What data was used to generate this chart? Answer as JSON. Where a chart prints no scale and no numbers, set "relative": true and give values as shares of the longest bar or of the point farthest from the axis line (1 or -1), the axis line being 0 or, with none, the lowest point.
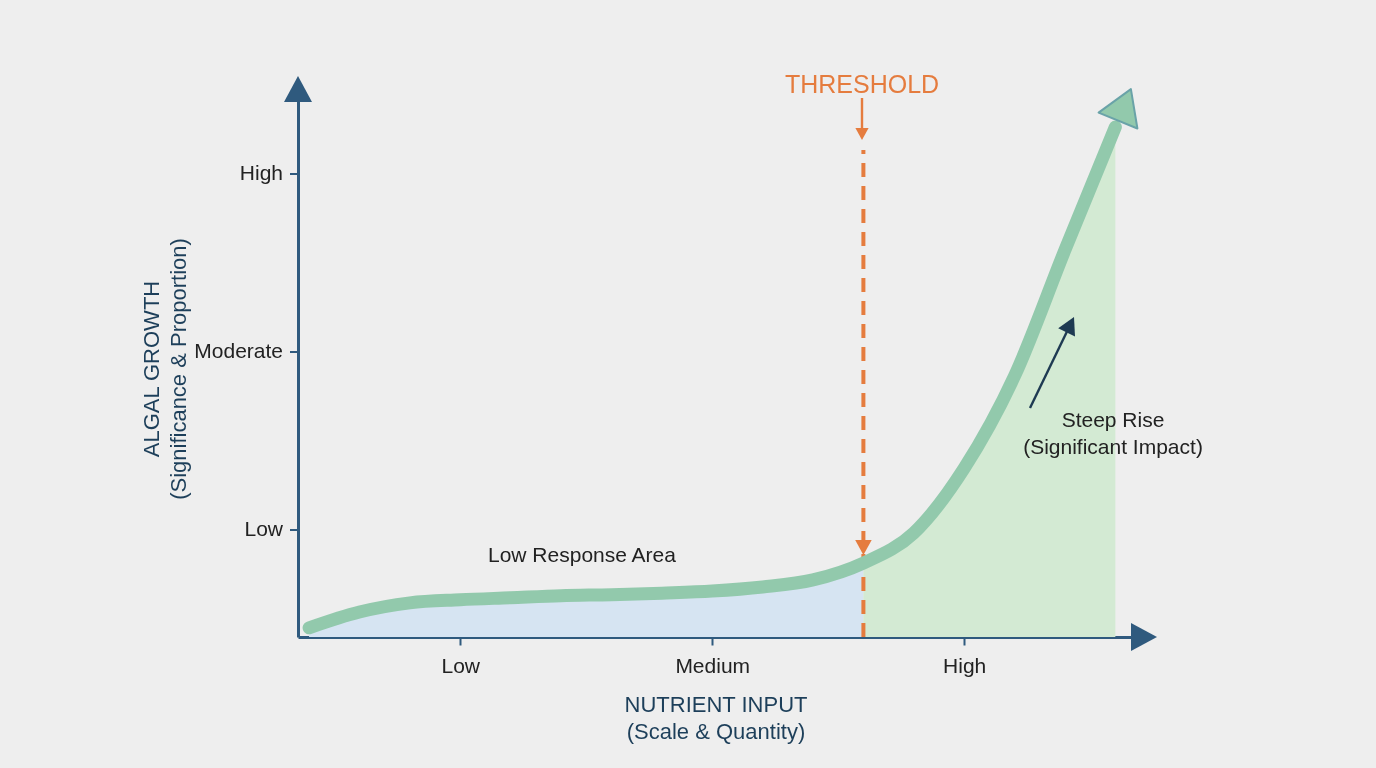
{
  "chart_data": {
    "type": "line",
    "relative": true,
    "xlabel": "NUTRIENT INPUT\n(Scale & Quantity)",
    "ylabel": "ALGAL GROWTH\n(Significance & Proportion)",
    "categories": [
      null,
      null,
      null,
      "Low",
      null,
      null,
      null,
      null,
      "Medium",
      null,
      null,
      null,
      null,
      "High",
      null,
      null,
      null
    ],
    "grid": false,
    "series": [
      {
        "type": "area",
        "color": "#d6e4f2",
        "values": [
          0.018,
          0.049,
          0.067,
          0.073,
          0.077,
          0.081,
          0.083,
          0.086,
          0.09,
          0.098,
          0.112,
          0.145,
          null,
          null,
          null,
          null,
          null
        ]
      },
      {
        "type": "area",
        "color": "#d3ead3",
        "values": [
          null,
          null,
          null,
          null,
          null,
          null,
          null,
          null,
          null,
          null,
          null,
          0.145,
          0.204,
          0.331,
          0.512,
          0.759,
          1
        ]
      },
      {
        "color": "#92c9ac",
        "values": [
          0.018,
          0.049,
          0.067,
          0.073,
          0.077,
          0.081,
          0.083,
          0.086,
          0.09,
          0.098,
          0.112,
          0.145,
          0.204,
          0.331,
          0.512,
          0.759,
          1
        ]
      }
    ],
    "annotations": [
      "THRESHOLD",
      "High",
      "Moderate",
      "Low",
      "Low Response Area",
      "Steep Rise\n(Significant Impact)"
    ]
  }
}
